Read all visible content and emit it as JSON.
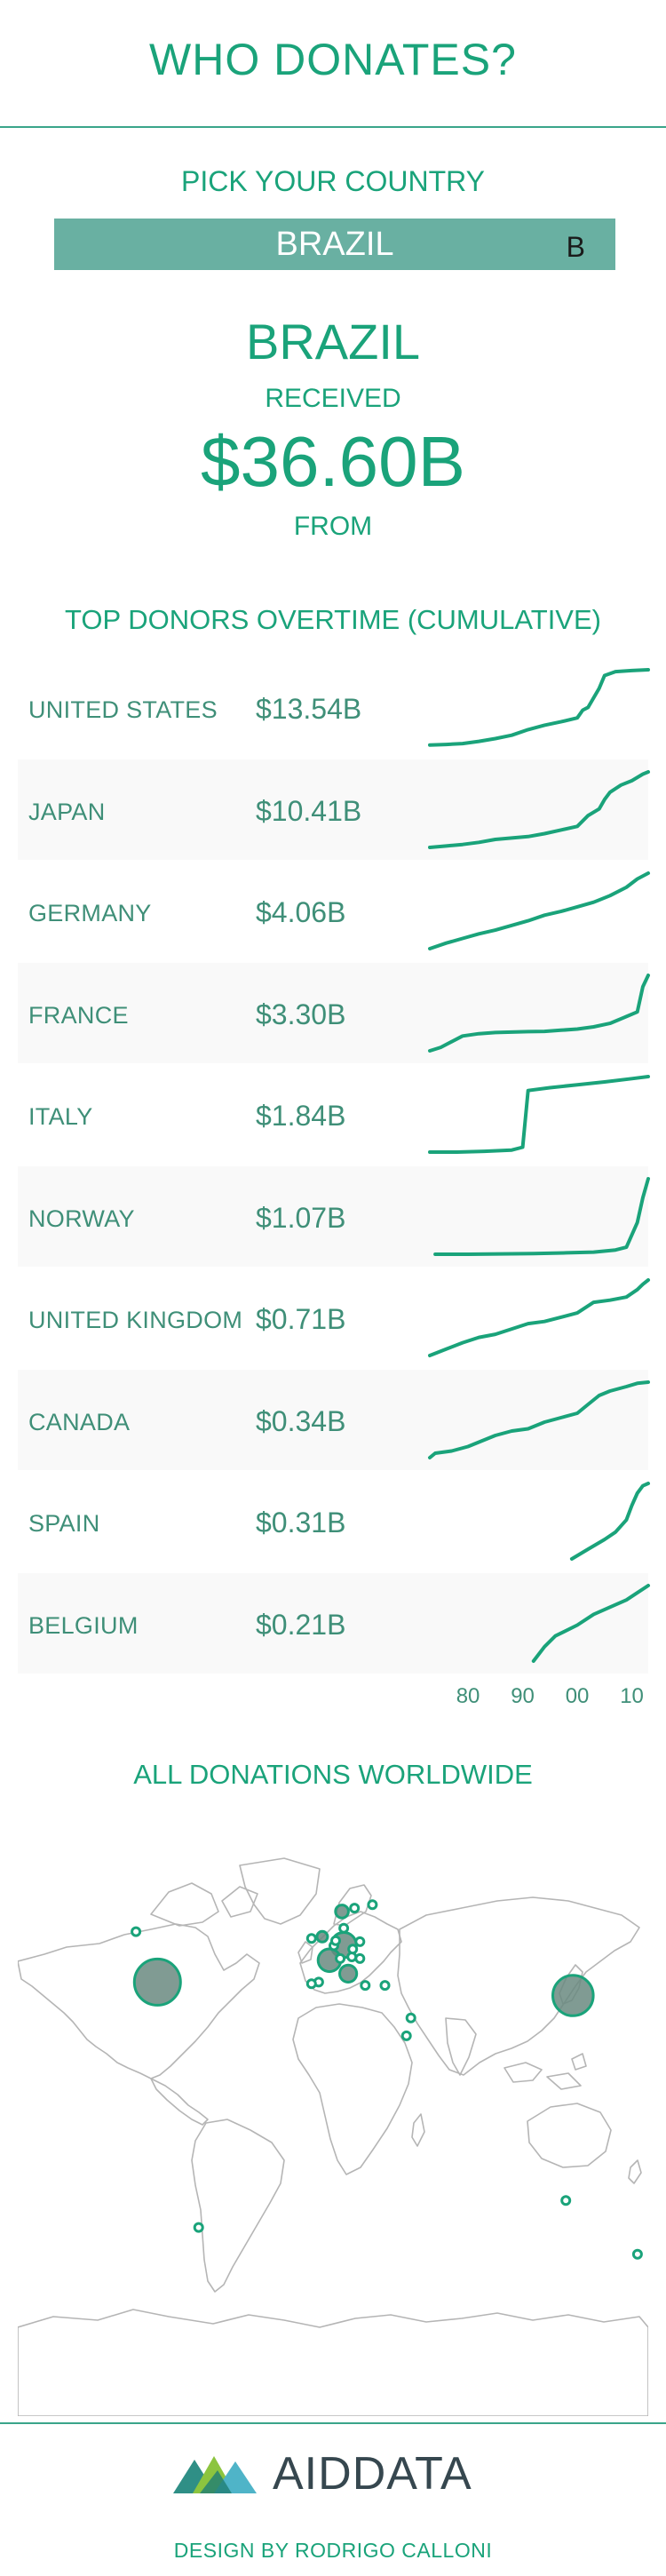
{
  "header": {
    "title": "WHO DONATES?"
  },
  "picker": {
    "label": "PICK YOUR COUNTRY",
    "selected": "BRAZIL",
    "caret": "B"
  },
  "summary": {
    "country": "BRAZIL",
    "received_label": "RECEIVED",
    "total": "$36.60B",
    "from_label": "FROM"
  },
  "colors": {
    "accent": "#1aa37a",
    "selector_bg": "#69b0a2",
    "text_muted": "#3f8f78",
    "map_outline": "#b5b5b5"
  },
  "chart_data": {
    "type": "line",
    "title": "TOP DONORS OVERTIME (CUMULATIVE)",
    "x_tick_labels": [
      "80",
      "90",
      "00",
      "10"
    ],
    "x_ticks": [
      1980,
      1990,
      2000,
      2010
    ],
    "xlim": [
      1973,
      2013
    ],
    "series": [
      {
        "name": "UNITED STATES",
        "total": "$13.54B",
        "x": [
          1973,
          1976,
          1979,
          1982,
          1985,
          1988,
          1991,
          1994,
          1997,
          2000,
          2001,
          2002,
          2003,
          2004,
          2005,
          2007,
          2010,
          2013
        ],
        "values": [
          0.05,
          0.15,
          0.3,
          0.7,
          1.2,
          1.8,
          2.8,
          3.6,
          4.2,
          4.9,
          6.3,
          6.8,
          8.5,
          10.2,
          12.5,
          13.2,
          13.4,
          13.54
        ]
      },
      {
        "name": "JAPAN",
        "total": "$10.41B",
        "x": [
          1973,
          1976,
          1979,
          1982,
          1985,
          1988,
          1991,
          1994,
          1997,
          2000,
          2002,
          2004,
          2005,
          2006,
          2008,
          2010,
          2012,
          2013
        ],
        "values": [
          0.0,
          0.2,
          0.4,
          0.7,
          1.1,
          1.3,
          1.5,
          1.9,
          2.4,
          2.9,
          4.4,
          5.3,
          6.6,
          7.6,
          8.6,
          9.2,
          10.1,
          10.41
        ]
      },
      {
        "name": "GERMANY",
        "total": "$4.06B",
        "x": [
          1973,
          1976,
          1979,
          1982,
          1985,
          1988,
          1991,
          1994,
          1997,
          2000,
          2003,
          2006,
          2009,
          2011,
          2013
        ],
        "values": [
          0.0,
          0.3,
          0.55,
          0.8,
          1.0,
          1.25,
          1.5,
          1.8,
          2.0,
          2.25,
          2.5,
          2.85,
          3.3,
          3.75,
          4.06
        ]
      },
      {
        "name": "FRANCE",
        "total": "$3.30B",
        "x": [
          1973,
          1975,
          1977,
          1979,
          1982,
          1985,
          1988,
          1991,
          1994,
          1997,
          2000,
          2003,
          2006,
          2009,
          2011,
          2012,
          2013
        ],
        "values": [
          0.0,
          0.15,
          0.4,
          0.65,
          0.75,
          0.8,
          0.82,
          0.84,
          0.85,
          0.9,
          0.95,
          1.05,
          1.2,
          1.5,
          1.7,
          2.8,
          3.3
        ]
      },
      {
        "name": "ITALY",
        "total": "$1.84B",
        "x": [
          1973,
          1978,
          1983,
          1988,
          1990,
          1991,
          1995,
          2000,
          2005,
          2010,
          2013
        ],
        "values": [
          0.0,
          0.0,
          0.02,
          0.05,
          0.12,
          1.5,
          1.57,
          1.64,
          1.71,
          1.79,
          1.84
        ]
      },
      {
        "name": "NORWAY",
        "total": "$1.07B",
        "x": [
          1974,
          1980,
          1986,
          1992,
          1998,
          2003,
          2007,
          2009,
          2011,
          2012,
          2013
        ],
        "values": [
          0.0,
          0.0,
          0.005,
          0.01,
          0.02,
          0.03,
          0.06,
          0.1,
          0.45,
          0.8,
          1.07
        ]
      },
      {
        "name": "UNITED KINGDOM",
        "total": "$0.71B",
        "x": [
          1973,
          1976,
          1979,
          1982,
          1985,
          1988,
          1991,
          1994,
          1997,
          2000,
          2003,
          2006,
          2009,
          2011,
          2012,
          2013
        ],
        "values": [
          0.0,
          0.06,
          0.12,
          0.17,
          0.2,
          0.25,
          0.3,
          0.32,
          0.36,
          0.4,
          0.5,
          0.52,
          0.55,
          0.62,
          0.67,
          0.71
        ]
      },
      {
        "name": "CANADA",
        "total": "$0.34B",
        "x": [
          1973,
          1974,
          1977,
          1980,
          1982,
          1985,
          1988,
          1991,
          1994,
          1997,
          2000,
          2002,
          2004,
          2006,
          2009,
          2011,
          2013
        ],
        "values": [
          0.0,
          0.02,
          0.03,
          0.05,
          0.07,
          0.1,
          0.12,
          0.13,
          0.16,
          0.18,
          0.2,
          0.24,
          0.28,
          0.3,
          0.32,
          0.335,
          0.34
        ]
      },
      {
        "name": "SPAIN",
        "total": "$0.31B",
        "x": [
          1999,
          2002,
          2005,
          2007,
          2009,
          2010,
          2011,
          2012,
          2013
        ],
        "values": [
          0.0,
          0.04,
          0.08,
          0.11,
          0.16,
          0.22,
          0.27,
          0.3,
          0.31
        ]
      },
      {
        "name": "BELGIUM",
        "total": "$0.21B",
        "x": [
          1992,
          1994,
          1996,
          2000,
          2003,
          2006,
          2009,
          2011,
          2013
        ],
        "values": [
          0.0,
          0.04,
          0.07,
          0.1,
          0.13,
          0.15,
          0.17,
          0.19,
          0.21
        ]
      }
    ]
  },
  "map": {
    "title": "ALL DONATIONS WORLDWIDE",
    "bubbles": [
      {
        "name": "USA",
        "value": 13.54,
        "lon": -94,
        "lat": 40
      },
      {
        "name": "Japan",
        "value": 10.41,
        "lon": 138,
        "lat": 36
      },
      {
        "name": "Germany",
        "value": 4.06,
        "lon": 10,
        "lat": 51
      },
      {
        "name": "France",
        "value": 3.3,
        "lon": 2,
        "lat": 46.5
      },
      {
        "name": "Italy",
        "value": 1.84,
        "lon": 12.5,
        "lat": 42.5
      },
      {
        "name": "Norway",
        "value": 1.07,
        "lon": 9,
        "lat": 61
      },
      {
        "name": "UK",
        "value": 0.71,
        "lon": -2,
        "lat": 53.5
      },
      {
        "name": "Canada",
        "value": 0.34,
        "lon": -106,
        "lat": 55
      },
      {
        "name": "Spain",
        "value": 0.31,
        "lon": -4,
        "lat": 40
      },
      {
        "name": "Belgium",
        "value": 0.21,
        "lon": 4.5,
        "lat": 50.8
      },
      {
        "name": "Netherlands",
        "value": 0.18,
        "lon": 5.5,
        "lat": 52.3
      },
      {
        "name": "Sweden",
        "value": 0.16,
        "lon": 16,
        "lat": 62
      },
      {
        "name": "Finland",
        "value": 0.12,
        "lon": 26,
        "lat": 63
      },
      {
        "name": "Denmark",
        "value": 0.1,
        "lon": 10,
        "lat": 56
      },
      {
        "name": "Switzerland",
        "value": 0.09,
        "lon": 8,
        "lat": 47
      },
      {
        "name": "Austria",
        "value": 0.08,
        "lon": 14.5,
        "lat": 47.5
      },
      {
        "name": "Portugal",
        "value": 0.07,
        "lon": -8,
        "lat": 39.5
      },
      {
        "name": "Poland",
        "value": 0.05,
        "lon": 19,
        "lat": 52
      },
      {
        "name": "Hungary",
        "value": 0.04,
        "lon": 19,
        "lat": 47
      },
      {
        "name": "Czech Republic",
        "value": 0.04,
        "lon": 15,
        "lat": 49.8
      },
      {
        "name": "Greece",
        "value": 0.03,
        "lon": 22,
        "lat": 39
      },
      {
        "name": "Turkey",
        "value": 0.03,
        "lon": 33,
        "lat": 39
      },
      {
        "name": "Kuwait",
        "value": 0.05,
        "lon": 47.5,
        "lat": 29.3
      },
      {
        "name": "Saudi Arabia",
        "value": 0.05,
        "lon": 45,
        "lat": 24
      },
      {
        "name": "Ireland",
        "value": 0.03,
        "lon": -8,
        "lat": 53
      },
      {
        "name": "Chile",
        "value": 0.03,
        "lon": -71,
        "lat": -33
      },
      {
        "name": "Australia",
        "value": 0.04,
        "lon": 134,
        "lat": -25
      },
      {
        "name": "New Zealand",
        "value": 0.03,
        "lon": 174,
        "lat": -41
      }
    ]
  },
  "footer": {
    "logo_part1": "AID",
    "logo_part2": "DATA",
    "credit": "DESIGN BY RODRIGO CALLONI"
  }
}
